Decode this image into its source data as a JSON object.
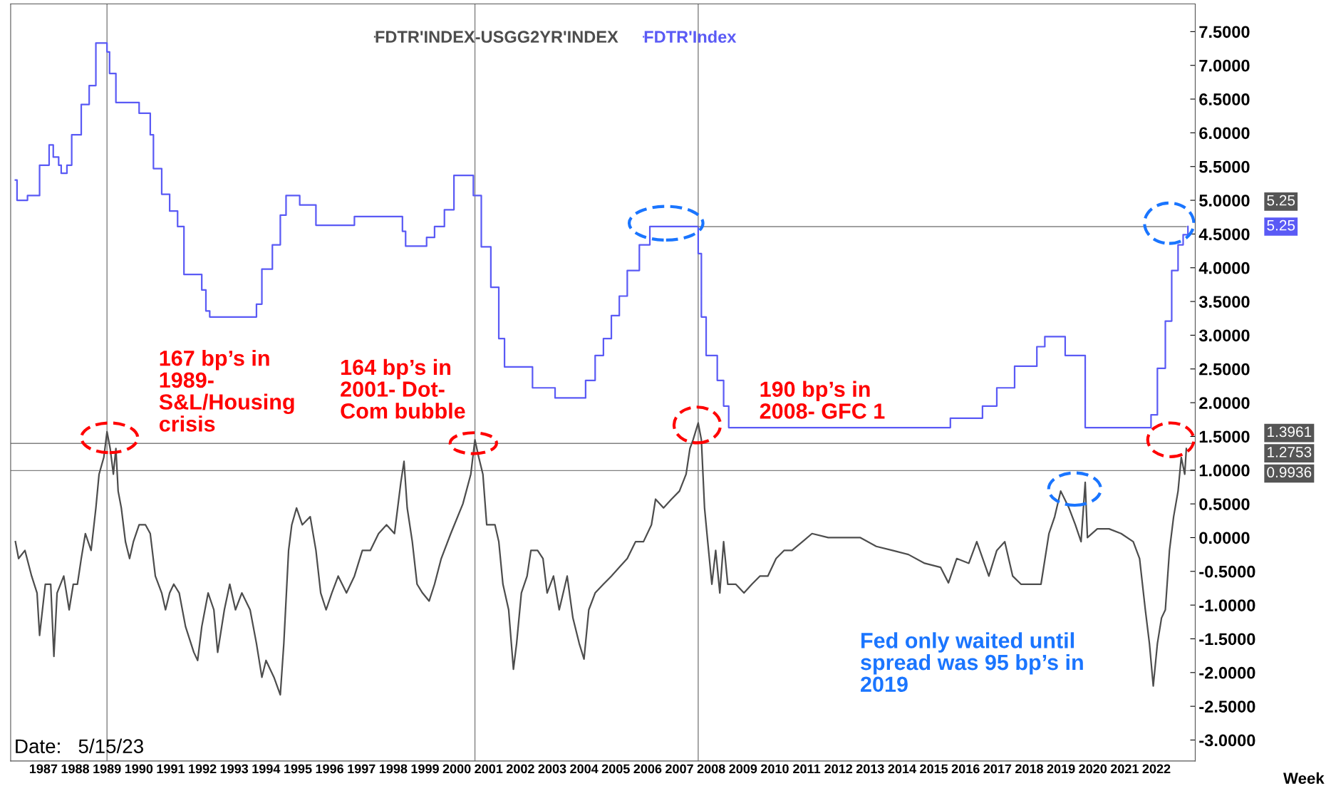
{
  "chart_data": {
    "type": "line",
    "x": [
      1986.62,
      1986.72,
      1986.92,
      1987.13,
      1987.3,
      1987.38,
      1987.56,
      1987.73,
      1987.83,
      1987.93,
      1988.14,
      1988.31,
      1988.44,
      1988.57,
      1988.69,
      1988.82,
      1989.0,
      1989.15,
      1989.25,
      1989.4,
      1989.5,
      1989.6,
      1989.7,
      1989.78,
      1989.85,
      1989.95,
      1990.08,
      1990.21,
      1990.33,
      1990.51,
      1990.71,
      1990.86,
      1991.02,
      1991.22,
      1991.34,
      1991.47,
      1991.6,
      1991.77,
      1991.97,
      1992.23,
      1992.35,
      1992.48,
      1992.68,
      1992.86,
      1992.98,
      1993.19,
      1993.36,
      1993.54,
      1993.74,
      1994.0,
      1994.2,
      1994.37,
      1994.5,
      1994.75,
      1994.95,
      1995.06,
      1995.21,
      1995.31,
      1995.46,
      1995.64,
      1995.89,
      1996.07,
      1996.22,
      1996.39,
      1996.57,
      1996.77,
      1997.03,
      1997.28,
      1997.53,
      1997.78,
      1998.04,
      1998.29,
      1998.54,
      1998.74,
      1998.84,
      1998.94,
      1999.1,
      1999.25,
      1999.42,
      1999.63,
      1999.8,
      2000.01,
      2000.31,
      2000.69,
      2000.94,
      2001.07,
      2001.19,
      2001.32,
      2001.44,
      2001.57,
      2001.7,
      2001.82,
      2001.95,
      2002.13,
      2002.28,
      2002.38,
      2002.53,
      2002.71,
      2002.83,
      2003.04,
      2003.21,
      2003.34,
      2003.54,
      2003.72,
      2003.97,
      2004.15,
      2004.35,
      2004.5,
      2004.65,
      2004.85,
      2005.11,
      2005.36,
      2005.61,
      2005.86,
      2006.12,
      2006.37,
      2006.62,
      2006.75,
      2007.0,
      2007.25,
      2007.5,
      2007.71,
      2007.83,
      2007.93,
      2008.09,
      2008.19,
      2008.29,
      2008.39,
      2008.52,
      2008.64,
      2008.77,
      2008.89,
      2009.02,
      2009.27,
      2009.53,
      2009.78,
      2010.03,
      2010.28,
      2010.54,
      2010.79,
      2011.04,
      2011.37,
      2011.67,
      2012.18,
      2012.68,
      2013.19,
      2013.69,
      2014.2,
      2014.7,
      2015.21,
      2015.71,
      2015.96,
      2016.22,
      2016.6,
      2016.85,
      2017.23,
      2017.48,
      2017.73,
      2017.98,
      2018.24,
      2018.49,
      2018.87,
      2019.12,
      2019.3,
      2019.49,
      2019.75,
      2019.95,
      2020.13,
      2020.26,
      2020.33,
      2020.64,
      2021.01,
      2021.39,
      2021.77,
      2021.97,
      2022.15,
      2022.28,
      2022.4,
      2022.53,
      2022.66,
      2022.78,
      2022.91,
      2023.04,
      2023.18,
      2023.28,
      2023.39,
      2023.44
    ],
    "series": [
      {
        "name": "FDTR'INDEX-USGG2YR'INDEX",
        "color": "#4d4d4d",
        "values": [
          -0.06,
          -0.31,
          -0.19,
          -0.57,
          -0.82,
          -1.45,
          -0.69,
          -0.69,
          -1.76,
          -0.82,
          -0.57,
          -1.07,
          -0.69,
          -0.69,
          -0.31,
          0.06,
          -0.19,
          0.44,
          0.94,
          1.19,
          1.57,
          1.32,
          0.94,
          1.32,
          0.69,
          0.44,
          -0.06,
          -0.31,
          -0.06,
          0.19,
          0.19,
          0.06,
          -0.57,
          -0.82,
          -1.07,
          -0.82,
          -0.69,
          -0.82,
          -1.32,
          -1.7,
          -1.82,
          -1.32,
          -0.82,
          -1.07,
          -1.7,
          -1.07,
          -0.69,
          -1.07,
          -0.82,
          -1.07,
          -1.57,
          -2.07,
          -1.82,
          -2.07,
          -2.33,
          -1.57,
          -0.19,
          0.19,
          0.44,
          0.19,
          0.31,
          -0.19,
          -0.82,
          -1.07,
          -0.82,
          -0.57,
          -0.82,
          -0.57,
          -0.19,
          -0.19,
          0.06,
          0.19,
          0.06,
          0.82,
          1.13,
          0.44,
          -0.06,
          -0.69,
          -0.82,
          -0.94,
          -0.69,
          -0.31,
          0.06,
          0.5,
          0.94,
          1.45,
          1.19,
          0.94,
          0.19,
          0.19,
          0.19,
          -0.06,
          -0.69,
          -1.07,
          -1.95,
          -1.57,
          -0.82,
          -0.57,
          -0.19,
          -0.19,
          -0.31,
          -0.82,
          -0.57,
          -1.07,
          -0.57,
          -1.19,
          -1.57,
          -1.8,
          -1.07,
          -0.82,
          -0.69,
          -0.57,
          -0.44,
          -0.31,
          -0.06,
          -0.06,
          0.19,
          0.57,
          0.44,
          0.57,
          0.69,
          0.94,
          1.32,
          1.45,
          1.7,
          1.45,
          0.44,
          -0.06,
          -0.69,
          -0.19,
          -0.82,
          -0.06,
          -0.69,
          -0.69,
          -0.82,
          -0.69,
          -0.57,
          -0.57,
          -0.31,
          -0.19,
          -0.19,
          -0.06,
          0.06,
          0.0,
          0.0,
          0.0,
          -0.13,
          -0.19,
          -0.25,
          -0.38,
          -0.44,
          -0.67,
          -0.31,
          -0.38,
          -0.06,
          -0.57,
          -0.19,
          -0.06,
          -0.57,
          -0.69,
          -0.69,
          -0.69,
          0.06,
          0.31,
          0.69,
          0.44,
          0.19,
          -0.06,
          0.82,
          0.0,
          0.13,
          0.13,
          0.06,
          -0.06,
          -0.31,
          -1.07,
          -1.57,
          -2.2,
          -1.57,
          -1.19,
          -1.07,
          -0.19,
          0.31,
          0.69,
          1.19,
          0.94,
          1.32
        ]
      },
      {
        "name": "FDTR'Index",
        "type": "step",
        "color": "#5a5af5",
        "x": [
          1986.62,
          1986.67,
          1987.0,
          1987.38,
          1987.68,
          1987.81,
          1987.98,
          1988.06,
          1988.24,
          1988.39,
          1988.69,
          1988.94,
          1989.15,
          1989.5,
          1989.58,
          1989.78,
          1990.51,
          1990.86,
          1990.96,
          1991.22,
          1991.47,
          1991.72,
          1991.92,
          1992.48,
          1992.61,
          1992.73,
          1994.2,
          1994.37,
          1994.7,
          1994.95,
          1995.13,
          1995.56,
          1996.07,
          1997.28,
          1998.79,
          1998.89,
          1999.55,
          1999.8,
          2000.11,
          2000.41,
          2001.02,
          2001.27,
          2001.57,
          2001.82,
          2002.0,
          2002.88,
          2003.59,
          2004.55,
          2004.85,
          2005.11,
          2005.36,
          2005.61,
          2005.86,
          2006.24,
          2006.57,
          2008.09,
          2008.19,
          2008.34,
          2008.69,
          2008.89,
          2009.05,
          2016.02,
          2017.03,
          2017.48,
          2018.04,
          2018.74,
          2018.99,
          2019.63,
          2020.26,
          2022.33,
          2022.53,
          2022.78,
          2022.98,
          2023.18,
          2023.34,
          2023.49
        ],
        "values": [
          5.3,
          5.0,
          5.07,
          5.52,
          5.82,
          5.64,
          5.52,
          5.4,
          5.52,
          5.97,
          6.42,
          6.7,
          7.33,
          7.2,
          6.88,
          6.45,
          6.29,
          5.97,
          5.47,
          5.09,
          4.84,
          4.61,
          3.9,
          3.67,
          3.36,
          3.27,
          3.46,
          3.98,
          4.34,
          4.78,
          5.07,
          4.93,
          4.63,
          4.76,
          4.54,
          4.32,
          4.45,
          4.61,
          4.86,
          5.37,
          5.07,
          4.31,
          3.71,
          2.95,
          2.53,
          2.22,
          2.07,
          2.33,
          2.7,
          2.95,
          3.29,
          3.58,
          3.96,
          4.34,
          4.61,
          4.21,
          3.27,
          2.7,
          2.33,
          1.95,
          1.63,
          1.77,
          1.95,
          2.22,
          2.54,
          2.83,
          2.98,
          2.7,
          1.63,
          1.82,
          2.51,
          3.21,
          3.96,
          4.34,
          4.49,
          4.61
        ]
      },
      {
        "type": "line",
        "color": "#808080",
        "x": [
          2008.09,
          2023.44
        ],
        "values": [
          4.61,
          4.61
        ]
      }
    ],
    "xlim": [
      1986.47,
      2023.72
    ],
    "ylim": [
      -3.31,
      7.91
    ],
    "xticks": [
      {
        "value": 1987.5,
        "label": "1987"
      },
      {
        "value": 1988.5,
        "label": "1988"
      },
      {
        "value": 1989.5,
        "label": "1989"
      },
      {
        "value": 1990.5,
        "label": "1990"
      },
      {
        "value": 1991.5,
        "label": "1991"
      },
      {
        "value": 1992.5,
        "label": "1992"
      },
      {
        "value": 1993.5,
        "label": "1993"
      },
      {
        "value": 1994.5,
        "label": "1994"
      },
      {
        "value": 1995.5,
        "label": "1995"
      },
      {
        "value": 1996.5,
        "label": "1996"
      },
      {
        "value": 1997.5,
        "label": "1997"
      },
      {
        "value": 1998.5,
        "label": "1998"
      },
      {
        "value": 1999.5,
        "label": "1999"
      },
      {
        "value": 2000.5,
        "label": "2000"
      },
      {
        "value": 2001.5,
        "label": "2001"
      },
      {
        "value": 2002.5,
        "label": "2002"
      },
      {
        "value": 2003.5,
        "label": "2003"
      },
      {
        "value": 2004.5,
        "label": "2004"
      },
      {
        "value": 2005.5,
        "label": "2005"
      },
      {
        "value": 2006.5,
        "label": "2006"
      },
      {
        "value": 2007.5,
        "label": "2007"
      },
      {
        "value": 2008.5,
        "label": "2008"
      },
      {
        "value": 2009.5,
        "label": "2009"
      },
      {
        "value": 2010.5,
        "label": "2010"
      },
      {
        "value": 2011.5,
        "label": "2011"
      },
      {
        "value": 2012.5,
        "label": "2012"
      },
      {
        "value": 2013.5,
        "label": "2013"
      },
      {
        "value": 2014.5,
        "label": "2014"
      },
      {
        "value": 2015.5,
        "label": "2015"
      },
      {
        "value": 2016.5,
        "label": "2016"
      },
      {
        "value": 2017.5,
        "label": "2017"
      },
      {
        "value": 2018.5,
        "label": "2018"
      },
      {
        "value": 2019.5,
        "label": "2019"
      },
      {
        "value": 2020.5,
        "label": "2020"
      },
      {
        "value": 2021.5,
        "label": "2021"
      },
      {
        "value": 2022.5,
        "label": "2022"
      }
    ],
    "yticks": [
      {
        "value": 7.5,
        "label": "7.5000"
      },
      {
        "value": 7.0,
        "label": "7.0000"
      },
      {
        "value": 6.5,
        "label": "6.5000"
      },
      {
        "value": 6.0,
        "label": "6.0000"
      },
      {
        "value": 5.5,
        "label": "5.5000"
      },
      {
        "value": 5.0,
        "label": "5.0000"
      },
      {
        "value": 4.5,
        "label": "4.5000"
      },
      {
        "value": 4.0,
        "label": "4.0000"
      },
      {
        "value": 3.5,
        "label": "3.5000"
      },
      {
        "value": 3.0,
        "label": "3.0000"
      },
      {
        "value": 2.5,
        "label": "2.5000"
      },
      {
        "value": 2.0,
        "label": "2.0000"
      },
      {
        "value": 1.5,
        "label": "1.5000"
      },
      {
        "value": 1.0,
        "label": "1.0000"
      },
      {
        "value": 0.5,
        "label": "0.5000"
      },
      {
        "value": 0.0,
        "label": "0.0000"
      },
      {
        "value": -0.5,
        "label": "-0.5000"
      },
      {
        "value": -1.0,
        "label": "-1.0000"
      },
      {
        "value": -1.5,
        "label": "-1.5000"
      },
      {
        "value": -2.0,
        "label": "-2.0000"
      },
      {
        "value": -2.5,
        "label": "-2.5000"
      },
      {
        "value": -3.0,
        "label": "-3.0000"
      }
    ],
    "ref_lines": [
      {
        "axis": "x",
        "value": 1989.5,
        "color": "#808080"
      },
      {
        "axis": "x",
        "value": 2001.07,
        "color": "#808080"
      },
      {
        "axis": "x",
        "value": 2008.09,
        "color": "#808080"
      },
      {
        "axis": "y",
        "value": 1.3961,
        "color": "#808080"
      },
      {
        "axis": "y",
        "value": 0.9936,
        "color": "#808080"
      }
    ],
    "annotations": [
      "167 bp’s in\n1989-\nS&L/Housing\ncrisis",
      "164 bp’s in\n2001- Dot-\nCom bubble",
      "190 bp’s in\n2008- GFC 1",
      "Fed only waited until\nspread was 95 bp’s in\n2019",
      "Date:   5/15/23",
      "Week",
      "5.25",
      "5.25",
      "1.3961",
      "1.2753",
      "0.9936"
    ],
    "legend": "top",
    "grid": false
  }
}
